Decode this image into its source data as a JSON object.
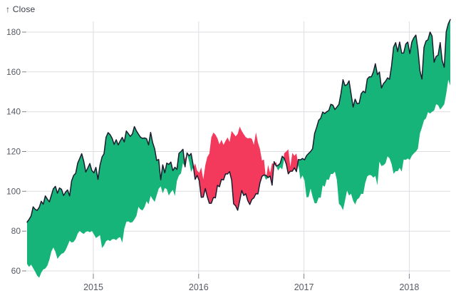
{
  "y_axis": {
    "label": "↑ Close",
    "ticks": [
      60,
      80,
      100,
      120,
      140,
      160,
      180
    ]
  },
  "x_axis": {
    "ticks": [
      2015,
      2016,
      2017,
      2018
    ]
  },
  "chart_data": {
    "type": "area",
    "variant": "difference",
    "title": "",
    "xlabel": "",
    "ylabel": "Close",
    "grid": true,
    "legend_position": "none",
    "y_ticks": [
      60,
      80,
      100,
      120,
      140,
      160,
      180
    ],
    "x_ticks": [
      2015,
      2016,
      2017,
      2018
    ],
    "y_tick_domain": [
      60,
      180
    ],
    "x_domain_decimal_years": [
      2014.3704,
      2018.3896
    ],
    "colors": {
      "positive_fill": "#17b479",
      "negative_fill": "#f43a5c",
      "line": "#1a1d30",
      "grid": "#dcdee1",
      "tick_mark": "#7d828a",
      "tick_text": "#555a63",
      "axis_label_text": "#3a3e49",
      "background": "#ffffff"
    },
    "series": {
      "name": "Close",
      "encoding": "weekly close values; the band compares each value to the value 52 points (one year) earlier: green where current is above year-ago, red where below",
      "start_decimal_year": 2013.3704,
      "step_decimal_years": 0.0192308,
      "shift_points": 52,
      "values": [
        63.5,
        62.0,
        63.2,
        61.4,
        59.6,
        57.6,
        56.6,
        59.2,
        60.7,
        61.2,
        62.6,
        65.6,
        69.8,
        71.8,
        69.6,
        66.1,
        67.4,
        68.6,
        69.0,
        70.4,
        72.6,
        75.2,
        74.3,
        74.6,
        76.1,
        78.8,
        80.1,
        79.2,
        78.6,
        79.6,
        80.0,
        79.4,
        80.1,
        78.4,
        76.6,
        77.2,
        78.0,
        71.5,
        72.8,
        74.9,
        75.6,
        75.0,
        75.9,
        76.0,
        75.5,
        76.6,
        77.0,
        74.2,
        81.1,
        84.6,
        84.9,
        84.2,
        84.5,
        85.9,
        87.7,
        92.2,
        90.9,
        90.4,
        92.0,
        95.0,
        93.5,
        97.7,
        96.1,
        94.7,
        98.0,
        101.3,
        102.5,
        99.0,
        101.7,
        101.0,
        97.9,
        99.6,
        100.7,
        97.7,
        105.2,
        108.0,
        109.0,
        114.2,
        116.5,
        118.9,
        115.0,
        109.7,
        111.8,
        114.0,
        110.4,
        109.3,
        112.0,
        106.0,
        113.0,
        117.2,
        118.9,
        127.1,
        129.5,
        128.5,
        126.6,
        123.6,
        125.9,
        123.3,
        125.3,
        127.1,
        124.8,
        130.3,
        129.0,
        127.6,
        128.8,
        132.5,
        130.3,
        128.7,
        127.2,
        126.6,
        126.8,
        126.4,
        123.3,
        129.6,
        124.5,
        121.3,
        115.5,
        116.0,
        105.8,
        113.3,
        109.3,
        114.2,
        113.5,
        114.7,
        110.4,
        112.1,
        111.0,
        119.1,
        120.0,
        121.1,
        112.3,
        119.3,
        117.8,
        119.0,
        113.2,
        106.0,
        108.0,
        105.4,
        97.0,
        97.1,
        101.4,
        97.3,
        94.0,
        94.0,
        96.9,
        96.7,
        103.0,
        102.3,
        106.0,
        105.7,
        108.7,
        108.7,
        109.9,
        105.7,
        93.7,
        92.7,
        90.5,
        95.2,
        100.4,
        97.9,
        98.8,
        95.3,
        93.4,
        95.9,
        96.7,
        98.8,
        98.7,
        104.2,
        107.5,
        108.2,
        108.0,
        106.9,
        107.7,
        103.1,
        114.9,
        112.7,
        113.1,
        114.1,
        117.6,
        116.6,
        113.7,
        108.8,
        110.1,
        110.1,
        111.8,
        109.9,
        116.0,
        115.8,
        116.5,
        115.8,
        117.9,
        119.0,
        120.0,
        121.4,
        129.1,
        132.1,
        135.7,
        136.7,
        139.8,
        139.1,
        140.0,
        140.6,
        143.7,
        143.3,
        141.1,
        142.3,
        143.7,
        149.0,
        156.1,
        153.1,
        153.6,
        155.5,
        149.0,
        142.3,
        146.3,
        144.0,
        144.2,
        149.0,
        150.3,
        149.5,
        156.4,
        157.5,
        157.5,
        159.9,
        164.1,
        158.6,
        159.9,
        151.9,
        154.1,
        155.3,
        157.0,
        156.3,
        163.1,
        172.5,
        174.7,
        170.2,
        175.0,
        169.4,
        169.5,
        174.0,
        175.0,
        169.2,
        175.0,
        177.1,
        178.5,
        171.5,
        160.5,
        156.4,
        172.4,
        175.5,
        176.2,
        180.0,
        178.0,
        164.9,
        167.8,
        168.4,
        174.7,
        165.7,
        162.3,
        180.2,
        184.2,
        186.3
      ]
    }
  }
}
